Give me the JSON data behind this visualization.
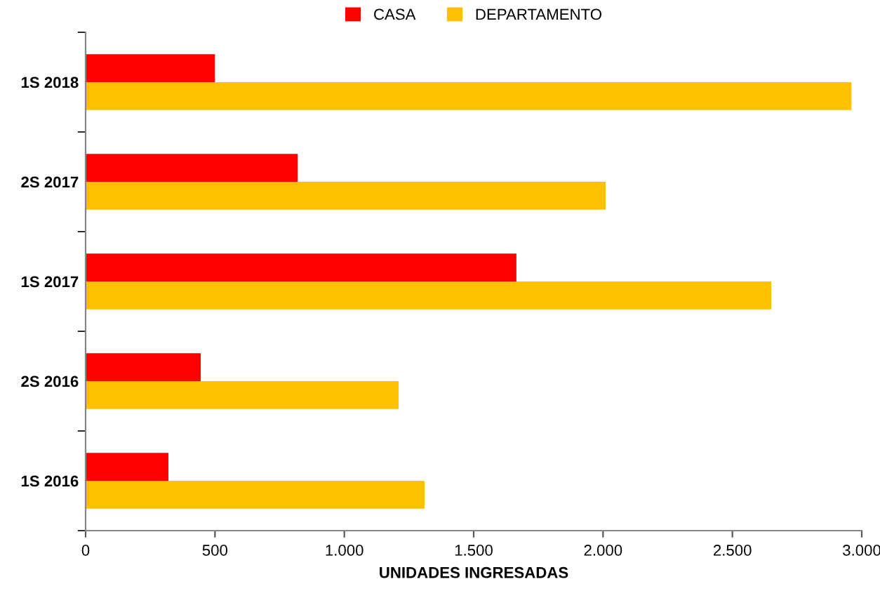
{
  "chart_data": {
    "type": "bar",
    "orientation": "horizontal",
    "xlabel": "UNIDADES INGRESADAS",
    "categories": [
      "1S 2018",
      "2S 2017",
      "1S 2017",
      "2S 2016",
      "1S 2016"
    ],
    "series": [
      {
        "name": "CASA",
        "color": "#ff0000",
        "values": [
          500,
          820,
          1665,
          445,
          320
        ]
      },
      {
        "name": "DEPARTAMENTO",
        "color": "#ffc000",
        "values": [
          2960,
          2010,
          2650,
          1210,
          1310
        ]
      }
    ],
    "xlim": [
      0,
      3000
    ],
    "xticks": [
      0,
      500,
      {
        "value": 1000,
        "label": "1.000"
      },
      {
        "value": 1500,
        "label": "1.500"
      },
      {
        "value": 2000,
        "label": "2.000"
      },
      {
        "value": 2500,
        "label": "2.500"
      },
      {
        "value": 3000,
        "label": "3.000"
      }
    ],
    "grid": false,
    "legend": "top"
  }
}
